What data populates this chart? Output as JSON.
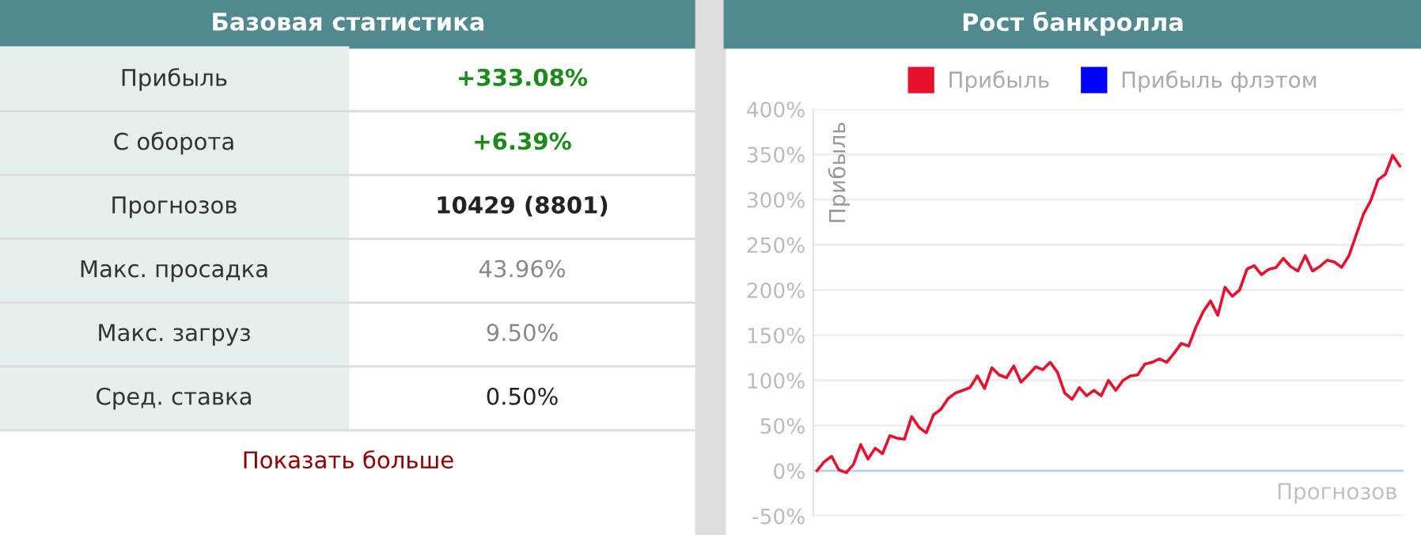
{
  "chart_data": [
    {
      "type": "other",
      "title": "Базовая статистика",
      "annotations": [
        "Прибыль",
        "+333.08%",
        "С оборота",
        "+6.39%",
        "Прогнозов",
        "10429 (8801)",
        "Макс. просадка",
        "43.96%",
        "Макс. загруз",
        "9.50%",
        "Сред. ставка",
        "0.50%",
        "Показать больше"
      ]
    },
    {
      "type": "line",
      "title": "Рост банкролла",
      "xlabel": "Прогнозов",
      "ylabel": "Прибыль",
      "categories": [
        null,
        null,
        null,
        null,
        null,
        null,
        null,
        null,
        null,
        null,
        null,
        null,
        null,
        null,
        null,
        null,
        null,
        null,
        null,
        null,
        null,
        null,
        null,
        null,
        null,
        null,
        null,
        null,
        null,
        null,
        null,
        null,
        null,
        null,
        null,
        null,
        null,
        null,
        null,
        null,
        null,
        null,
        null,
        null,
        null,
        null,
        null,
        null,
        null,
        null,
        null,
        null,
        null,
        null,
        null,
        null,
        null,
        null,
        null,
        null,
        null,
        null,
        null,
        null,
        null,
        null,
        null,
        null,
        null,
        null,
        null,
        null,
        null,
        null,
        null,
        null,
        null,
        null,
        null,
        null,
        null
      ],
      "series": [
        {
          "name": "Прибыль",
          "color": "#e8112d",
          "values": [
            0,
            10,
            16,
            1,
            -2,
            7,
            29,
            13,
            25,
            19,
            39,
            36,
            35,
            60,
            48,
            42,
            62,
            68,
            80,
            86,
            89,
            92,
            105,
            91,
            114,
            106,
            103,
            116,
            98,
            106,
            115,
            112,
            120,
            109,
            86,
            79,
            92,
            83,
            89,
            83,
            100,
            89,
            100,
            105,
            106,
            118,
            120,
            124,
            120,
            130,
            141,
            138,
            159,
            176,
            188,
            172,
            203,
            193,
            200,
            223,
            227,
            217,
            223,
            225,
            235,
            226,
            221,
            238,
            221,
            226,
            233,
            231,
            225,
            238,
            261,
            284,
            299,
            322,
            328,
            349,
            337
          ]
        },
        {
          "name": "Прибыль флэтом",
          "color": "#0000ff",
          "values": [
            null,
            null,
            null,
            null,
            null,
            null,
            null,
            null,
            null,
            null,
            null,
            null,
            null,
            null,
            null,
            null,
            null,
            null,
            null,
            null,
            null,
            null,
            null,
            null,
            null,
            null,
            null,
            null,
            null,
            null,
            null,
            null,
            null,
            null,
            null,
            null,
            null,
            null,
            null,
            null,
            null,
            null,
            null,
            null,
            null,
            null,
            null,
            null,
            null,
            null,
            null,
            null,
            null,
            null,
            null,
            null,
            null,
            null,
            null,
            null,
            null,
            null,
            null,
            null,
            null,
            null,
            null,
            null,
            null,
            null,
            null,
            null,
            null,
            null,
            null,
            null,
            null,
            null,
            null,
            null,
            null
          ]
        }
      ],
      "ylim": [
        -50,
        400
      ],
      "yticks": [
        {
          "value": -50,
          "label": "-50%"
        },
        {
          "value": 0,
          "label": "0%"
        },
        {
          "value": 50,
          "label": "50%"
        },
        {
          "value": 100,
          "label": "100%"
        },
        {
          "value": 150,
          "label": "150%"
        },
        {
          "value": 200,
          "label": "200%"
        },
        {
          "value": 250,
          "label": "250%"
        },
        {
          "value": 300,
          "label": "300%"
        },
        {
          "value": 350,
          "label": "350%"
        },
        {
          "value": 400,
          "label": "400%"
        }
      ],
      "ref_lines": [
        {
          "axis": "y",
          "value": 0,
          "color": "#b8d4ea"
        }
      ],
      "grid": "y",
      "legend": "top",
      "tick_labels": "y",
      "marker": "none",
      "line_style": "solid"
    }
  ]
}
